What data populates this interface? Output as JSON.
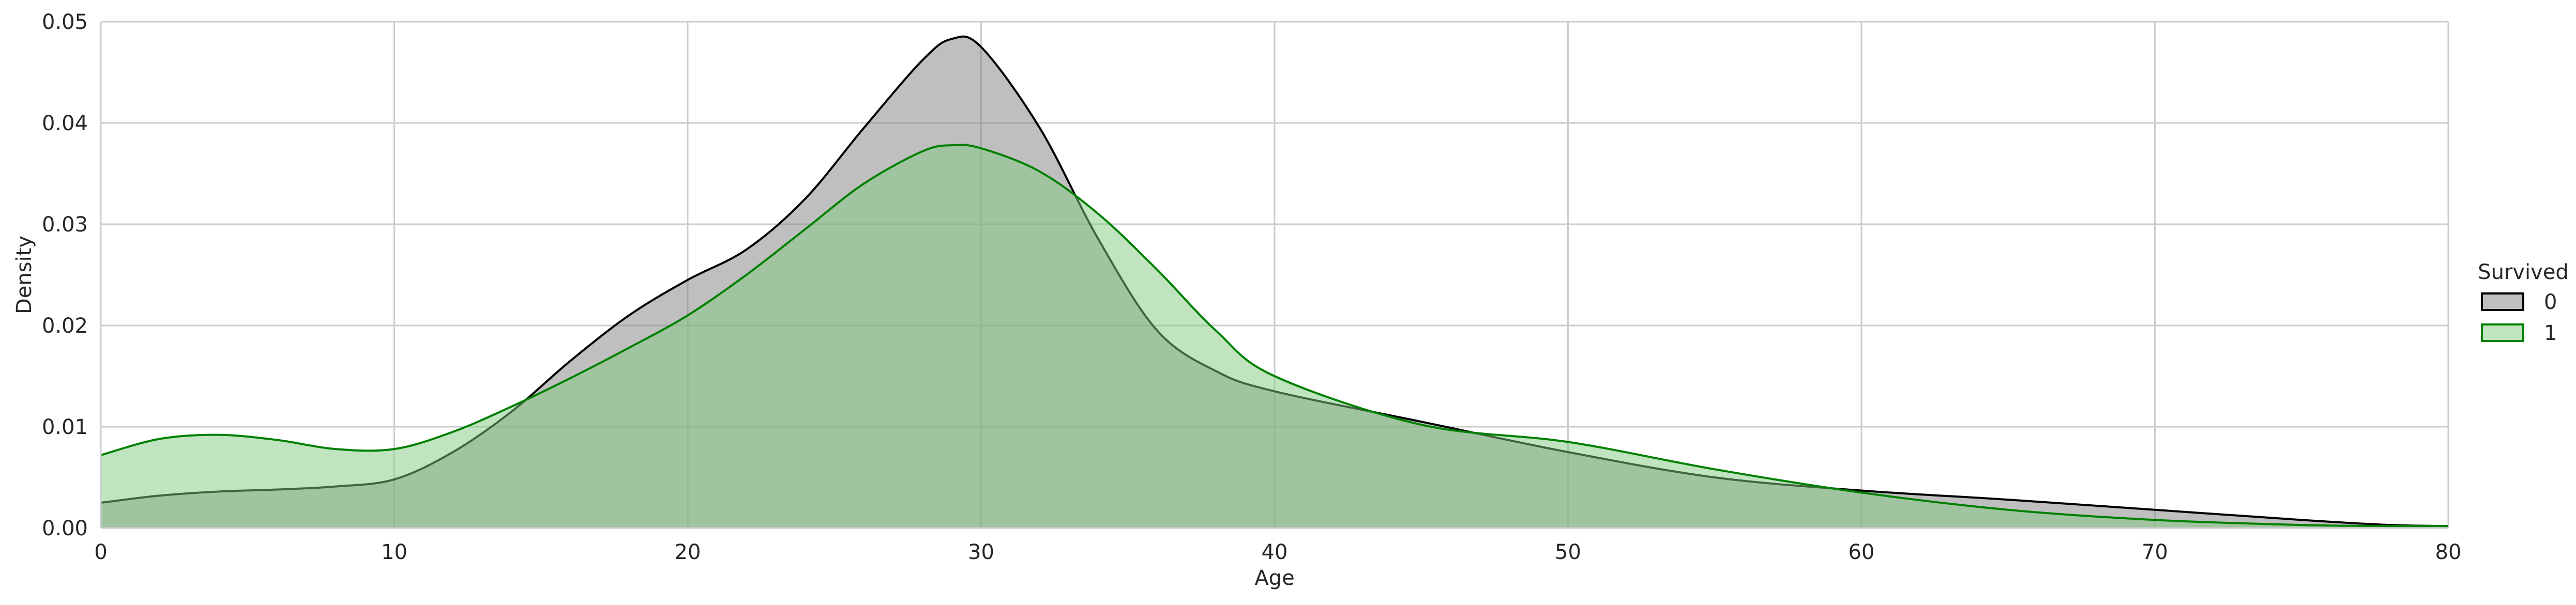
{
  "chart_data": {
    "type": "area",
    "xlabel": "Age",
    "ylabel": "Density",
    "xlim": [
      0,
      80
    ],
    "ylim": [
      0,
      0.05
    ],
    "xticks": [
      0,
      10,
      20,
      30,
      40,
      50,
      60,
      70,
      80
    ],
    "xtick_labels": [
      "0",
      "10",
      "20",
      "30",
      "40",
      "50",
      "60",
      "70",
      "80"
    ],
    "yticks": [
      0,
      0.01,
      0.02,
      0.03,
      0.04,
      0.05
    ],
    "ytick_labels": [
      "0.00",
      "0.01",
      "0.02",
      "0.03",
      "0.04",
      "0.05"
    ],
    "grid": true,
    "legend": {
      "title": "Survived",
      "position": "right"
    },
    "series": [
      {
        "name": "0",
        "line_color": "#000000",
        "fill_color": "#808080",
        "fill_opacity": 0.5,
        "x": [
          0,
          2,
          4,
          6,
          8,
          10,
          12,
          14,
          16,
          18,
          20,
          22,
          24,
          26,
          28,
          29,
          30,
          32,
          34,
          36,
          38,
          40,
          45,
          50,
          55,
          60,
          65,
          70,
          75,
          78,
          80
        ],
        "y": [
          0.0025,
          0.0032,
          0.0036,
          0.0038,
          0.0041,
          0.0048,
          0.0075,
          0.0115,
          0.0165,
          0.021,
          0.0245,
          0.0275,
          0.0325,
          0.0395,
          0.0462,
          0.0483,
          0.0475,
          0.0395,
          0.0285,
          0.0195,
          0.0155,
          0.0135,
          0.0105,
          0.0075,
          0.005,
          0.0037,
          0.0028,
          0.0018,
          0.0008,
          0.0003,
          0.0002
        ]
      },
      {
        "name": "1",
        "line_color": "#008000",
        "fill_color": "#7fc97f",
        "fill_opacity": 0.5,
        "x": [
          0,
          2,
          4,
          6,
          8,
          10,
          12,
          14,
          16,
          18,
          20,
          22,
          24,
          26,
          28,
          29,
          30,
          32,
          34,
          36,
          38,
          40,
          45,
          50,
          55,
          60,
          65,
          70,
          75,
          78,
          80
        ],
        "y": [
          0.0072,
          0.0088,
          0.0092,
          0.0087,
          0.0078,
          0.0078,
          0.0095,
          0.012,
          0.0148,
          0.0178,
          0.021,
          0.025,
          0.0295,
          0.034,
          0.0372,
          0.0378,
          0.0375,
          0.0352,
          0.031,
          0.0255,
          0.0195,
          0.015,
          0.0102,
          0.0085,
          0.0058,
          0.0035,
          0.0018,
          0.0008,
          0.0003,
          0.0002,
          0.0002
        ]
      }
    ]
  }
}
